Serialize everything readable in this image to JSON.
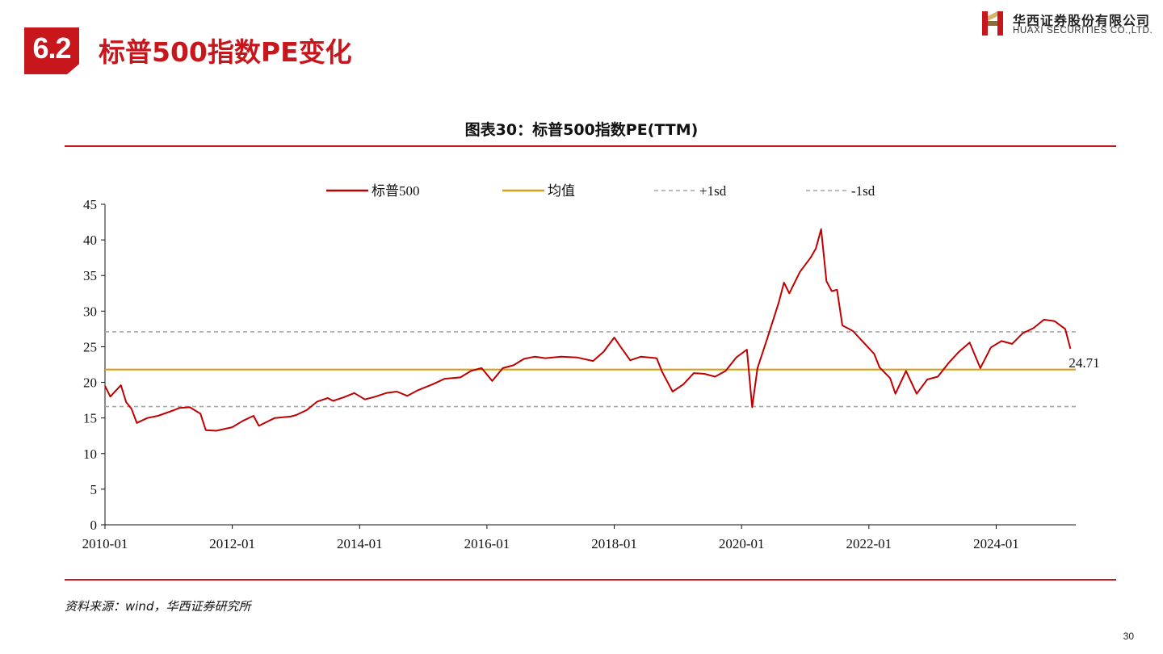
{
  "header": {
    "section_number": "6.2",
    "title": "标普500指数PE变化",
    "logo": {
      "name_cn": "华西证券股份有限公司",
      "name_en": "HUAXI SECURITIES CO.,LTD."
    },
    "brand_color": "#c8161d"
  },
  "chart_title": "图表30：标普500指数PE(TTM)",
  "source": "资料来源：wind，华西证券研究所",
  "page_number": "30",
  "chart_data": {
    "type": "line",
    "title": "图表30：标普500指数PE(TTM)",
    "xlabel": "",
    "ylabel": "",
    "x_range": [
      "2010-01",
      "2025-04"
    ],
    "x_ticks": [
      "2010-01",
      "2012-01",
      "2014-01",
      "2016-01",
      "2018-01",
      "2020-01",
      "2022-01",
      "2024-01"
    ],
    "ylim": [
      0,
      45
    ],
    "y_ticks": [
      "0",
      "5",
      "10",
      "15",
      "20",
      "25",
      "30",
      "35",
      "40",
      "45"
    ],
    "grid": false,
    "legend_position": "top",
    "series": [
      {
        "name": "标普500",
        "color": "#c00000",
        "style": "solid",
        "points": [
          [
            "2010-01",
            19.5
          ],
          [
            "2010-02",
            18.0
          ],
          [
            "2010-04",
            19.6
          ],
          [
            "2010-05",
            17.2
          ],
          [
            "2010-06",
            16.3
          ],
          [
            "2010-07",
            14.3
          ],
          [
            "2010-09",
            15.0
          ],
          [
            "2010-11",
            15.3
          ],
          [
            "2011-02",
            16.1
          ],
          [
            "2011-03",
            16.4
          ],
          [
            "2011-05",
            16.5
          ],
          [
            "2011-07",
            15.6
          ],
          [
            "2011-08",
            13.3
          ],
          [
            "2011-10",
            13.2
          ],
          [
            "2012-01",
            13.7
          ],
          [
            "2012-03",
            14.6
          ],
          [
            "2012-05",
            15.3
          ],
          [
            "2012-06",
            13.9
          ],
          [
            "2012-09",
            15.0
          ],
          [
            "2012-12",
            15.2
          ],
          [
            "2013-01",
            15.4
          ],
          [
            "2013-03",
            16.1
          ],
          [
            "2013-05",
            17.3
          ],
          [
            "2013-07",
            17.8
          ],
          [
            "2013-08",
            17.4
          ],
          [
            "2013-10",
            17.9
          ],
          [
            "2013-12",
            18.5
          ],
          [
            "2014-02",
            17.6
          ],
          [
            "2014-04",
            18.0
          ],
          [
            "2014-06",
            18.5
          ],
          [
            "2014-08",
            18.7
          ],
          [
            "2014-10",
            18.1
          ],
          [
            "2014-12",
            18.9
          ],
          [
            "2015-03",
            19.8
          ],
          [
            "2015-05",
            20.5
          ],
          [
            "2015-08",
            20.7
          ],
          [
            "2015-10",
            21.6
          ],
          [
            "2015-12",
            22.0
          ],
          [
            "2016-02",
            20.2
          ],
          [
            "2016-04",
            22.0
          ],
          [
            "2016-06",
            22.4
          ],
          [
            "2016-08",
            23.3
          ],
          [
            "2016-10",
            23.6
          ],
          [
            "2016-12",
            23.4
          ],
          [
            "2017-03",
            23.6
          ],
          [
            "2017-06",
            23.5
          ],
          [
            "2017-09",
            23.0
          ],
          [
            "2017-11",
            24.3
          ],
          [
            "2018-01",
            26.3
          ],
          [
            "2018-02",
            25.2
          ],
          [
            "2018-04",
            23.1
          ],
          [
            "2018-06",
            23.6
          ],
          [
            "2018-09",
            23.4
          ],
          [
            "2018-10",
            21.5
          ],
          [
            "2018-12",
            18.7
          ],
          [
            "2019-02",
            19.7
          ],
          [
            "2019-04",
            21.3
          ],
          [
            "2019-06",
            21.2
          ],
          [
            "2019-08",
            20.8
          ],
          [
            "2019-10",
            21.6
          ],
          [
            "2019-12",
            23.5
          ],
          [
            "2020-02",
            24.6
          ],
          [
            "2020-03",
            16.5
          ],
          [
            "2020-04",
            22.0
          ],
          [
            "2020-06",
            26.5
          ],
          [
            "2020-08",
            31.2
          ],
          [
            "2020-09",
            34.0
          ],
          [
            "2020-10",
            32.5
          ],
          [
            "2020-12",
            35.5
          ],
          [
            "2021-02",
            37.5
          ],
          [
            "2021-03",
            38.8
          ],
          [
            "2021-04",
            41.5
          ],
          [
            "2021-05",
            34.2
          ],
          [
            "2021-06",
            32.8
          ],
          [
            "2021-07",
            33.0
          ],
          [
            "2021-08",
            28.0
          ],
          [
            "2021-10",
            27.2
          ],
          [
            "2021-12",
            25.6
          ],
          [
            "2022-02",
            24.0
          ],
          [
            "2022-03",
            22.1
          ],
          [
            "2022-05",
            20.6
          ],
          [
            "2022-06",
            18.4
          ],
          [
            "2022-08",
            21.6
          ],
          [
            "2022-10",
            18.4
          ],
          [
            "2022-12",
            20.4
          ],
          [
            "2023-02",
            20.8
          ],
          [
            "2023-04",
            22.7
          ],
          [
            "2023-06",
            24.3
          ],
          [
            "2023-08",
            25.6
          ],
          [
            "2023-10",
            22.0
          ],
          [
            "2023-12",
            24.9
          ],
          [
            "2024-02",
            25.8
          ],
          [
            "2024-04",
            25.4
          ],
          [
            "2024-06",
            26.9
          ],
          [
            "2024-08",
            27.6
          ],
          [
            "2024-10",
            28.8
          ],
          [
            "2024-12",
            28.6
          ],
          [
            "2025-02",
            27.5
          ],
          [
            "2025-03",
            24.71
          ]
        ]
      },
      {
        "name": "均值",
        "color": "#d4a017",
        "style": "solid",
        "value": 21.8
      },
      {
        "name": "+1sd",
        "color": "#a6a6a6",
        "style": "dashed",
        "value": 27.1
      },
      {
        "name": "-1sd",
        "color": "#a6a6a6",
        "style": "dashed",
        "value": 16.6
      }
    ],
    "annotations": [
      {
        "text": "24.71",
        "x": "2025-03",
        "y": 24.71
      }
    ]
  }
}
